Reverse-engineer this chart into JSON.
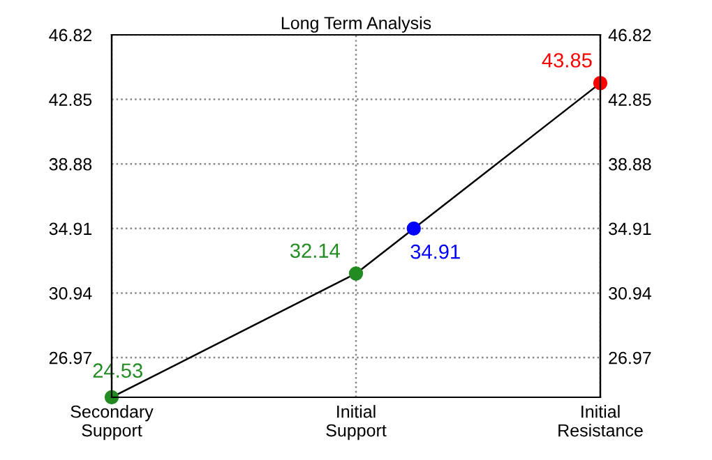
{
  "chart_data": {
    "type": "line",
    "title": "Long Term Analysis",
    "categories": [
      "Secondary\nSupport",
      "Initial\nSupport",
      "Initial\nResistance"
    ],
    "ylim": [
      24.53,
      46.82
    ],
    "yticks": [
      26.97,
      30.94,
      34.91,
      38.88,
      42.85,
      46.82
    ],
    "y2lim": [
      24.53,
      46.82
    ],
    "y2ticks": [
      26.97,
      30.94,
      34.91,
      38.88,
      42.85,
      46.82
    ],
    "grid": true,
    "series": [
      {
        "color": "#000000",
        "values": [
          24.53,
          32.14,
          43.85
        ]
      },
      {
        "type": "scatter",
        "values": [
          24.53,
          32.14,
          43.85
        ],
        "colors": [
          "#228b22",
          "#228b22",
          "#ff0000"
        ],
        "marker": "circle",
        "value_labels": [
          "24.53",
          "32.14",
          "43.85"
        ]
      },
      {
        "type": "scatter",
        "values": [
          null,
          34.91,
          null
        ],
        "colors": [
          "#0000ff",
          "#0000ff",
          "#0000ff"
        ],
        "marker": "circle",
        "value_labels": [
          null,
          "34.91",
          null
        ]
      }
    ]
  }
}
